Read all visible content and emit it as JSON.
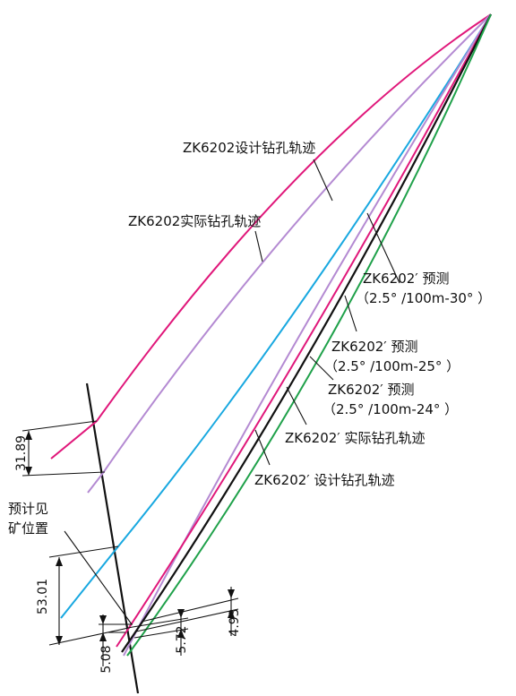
{
  "colors": {
    "design_trajectory": "#e0177a",
    "actual_trajectory": "#b48ad2",
    "pred_30": "#18a8e0",
    "pred_25": "#e0177a",
    "pred_24": "#1fa14a",
    "actual_prime": "#111111",
    "design_prime": "#b48ad2",
    "annotation": "#111111"
  },
  "labels": {
    "zk6202_design": "ZK6202设计钻孔轨迹",
    "zk6202_actual": "ZK6202实际钻孔轨迹",
    "pred30_name": "ZK6202′ 预测",
    "pred30_param": "（2.5° /100m-30° ）",
    "pred25_name": "ZK6202′ 预测",
    "pred25_param": "（2.5° /100m-25° ）",
    "pred24_name": "ZK6202′ 预测",
    "pred24_param": "（2.5° /100m-24° ）",
    "prime_actual": "ZK6202′ 实际钻孔轨迹",
    "prime_design": "ZK6202′ 设计钻孔轨迹",
    "ore_line1": "预计见",
    "ore_line2": "矿位置"
  },
  "dimensions": {
    "d1": "31.89",
    "d2": "53.01",
    "d3": "5.08",
    "d4": "5.72",
    "d5": "4.93"
  }
}
